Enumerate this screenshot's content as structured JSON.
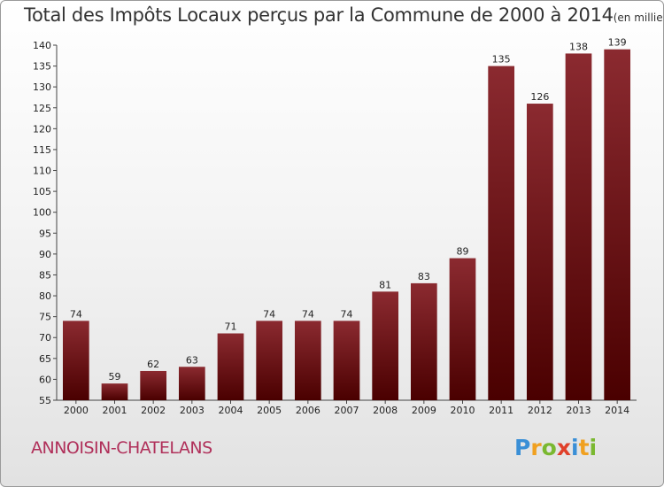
{
  "title": "Total des Impôts Locaux perçus par la Commune de 2000 à 2014",
  "subtitle": "(en milliers d'€)",
  "commune": "ANNOISIN-CHATELANS",
  "logo": {
    "text": "Proxiti",
    "letters": [
      {
        "char": "P",
        "color": "#3a8fd6"
      },
      {
        "char": "r",
        "color": "#f0a020"
      },
      {
        "char": "o",
        "color": "#7ab830"
      },
      {
        "char": "x",
        "color": "#e0402a"
      },
      {
        "char": "i",
        "color": "#3a8fd6"
      },
      {
        "char": "t",
        "color": "#f0a020"
      },
      {
        "char": "i",
        "color": "#7ab830"
      }
    ]
  },
  "chart_data": {
    "type": "bar",
    "title": "Total des Impôts Locaux perçus par la Commune de 2000 à 2014",
    "subtitle": "(en milliers d'€)",
    "categories": [
      "2000",
      "2001",
      "2002",
      "2003",
      "2004",
      "2005",
      "2006",
      "2007",
      "2008",
      "2009",
      "2010",
      "2011",
      "2012",
      "2013",
      "2014"
    ],
    "values": [
      74,
      59,
      62,
      63,
      71,
      74,
      74,
      74,
      81,
      83,
      89,
      135,
      126,
      138,
      139
    ],
    "ylim": [
      55,
      140
    ],
    "yticks": [
      55,
      60,
      65,
      70,
      75,
      80,
      85,
      90,
      95,
      100,
      105,
      110,
      115,
      120,
      125,
      130,
      135,
      140
    ],
    "grid": false,
    "bar_color_top": "#8b2a30",
    "bar_color_bottom": "#4a0000"
  }
}
